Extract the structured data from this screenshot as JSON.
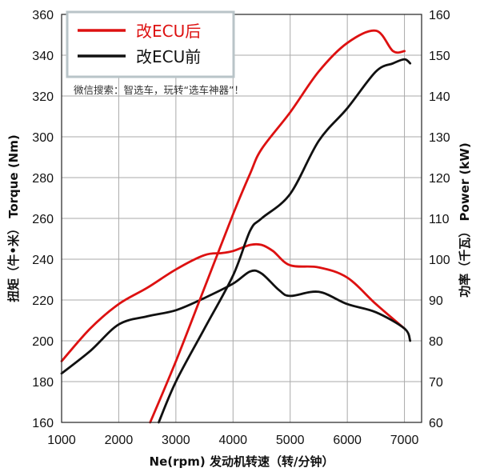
{
  "chart_data": {
    "type": "line",
    "xlabel": "Ne(rpm) 发动机转速（转/分钟）",
    "ylabel_left": "扭矩（牛•米） Torque (Nm)",
    "ylabel_right": "功率（千瓦） Power (kW)",
    "xlim": [
      1000,
      7300
    ],
    "ylim_left": [
      160,
      360
    ],
    "ylim_right": [
      60,
      160
    ],
    "x_ticks": [
      "1000",
      "2000",
      "3000",
      "4000",
      "5000",
      "6000",
      "7000"
    ],
    "y_left_ticks": [
      "160",
      "180",
      "200",
      "220",
      "240",
      "260",
      "280",
      "300",
      "320",
      "340",
      "360"
    ],
    "y_right_ticks": [
      "60",
      "70",
      "80",
      "90",
      "100",
      "110",
      "120",
      "130",
      "140",
      "150",
      "160"
    ],
    "grid": true,
    "legend_position": "top-left",
    "legend": [
      "改ECU后",
      "改ECU前"
    ],
    "note": "微信搜索：智选车，玩转“选车神器”！",
    "colors": {
      "after": "#dd1111",
      "before": "#111111",
      "grid": "#aaaaaa"
    },
    "series": [
      {
        "name": "改ECU后",
        "axis": "left",
        "color": "#dd1111",
        "x": [
          1000,
          1500,
          2000,
          2500,
          3000,
          3500,
          3800,
          4000,
          4300,
          4500,
          4700,
          5000,
          5500,
          6000,
          6500,
          7000
        ],
        "values": [
          190,
          206,
          218,
          226,
          235,
          242,
          243,
          244,
          247,
          247,
          244,
          237,
          236,
          231,
          218,
          206
        ]
      },
      {
        "name": "改ECU前",
        "axis": "left",
        "color": "#111111",
        "x": [
          1000,
          1500,
          2000,
          2500,
          3000,
          3500,
          4000,
          4300,
          4500,
          4800,
          5000,
          5500,
          6000,
          6500,
          7000,
          7100
        ],
        "values": [
          184,
          195,
          208,
          212,
          215,
          221,
          228,
          234,
          233,
          225,
          222,
          224,
          218,
          214,
          206,
          200
        ]
      },
      {
        "name": "改ECU后",
        "axis": "right",
        "color": "#dd1111",
        "x": [
          2550,
          3000,
          3500,
          4000,
          4300,
          4500,
          5000,
          5500,
          6000,
          6500,
          6800,
          7000
        ],
        "values": [
          60,
          75,
          93,
          111,
          121,
          127,
          136,
          146,
          153,
          156,
          151,
          151
        ]
      },
      {
        "name": "改ECU前",
        "axis": "right",
        "color": "#111111",
        "x": [
          2700,
          3000,
          3500,
          4000,
          4300,
          4500,
          5000,
          5500,
          6000,
          6500,
          6800,
          7000,
          7100
        ],
        "values": [
          60,
          70,
          83,
          96,
          107,
          110,
          116,
          129,
          137,
          146,
          148,
          149,
          148
        ]
      }
    ]
  }
}
